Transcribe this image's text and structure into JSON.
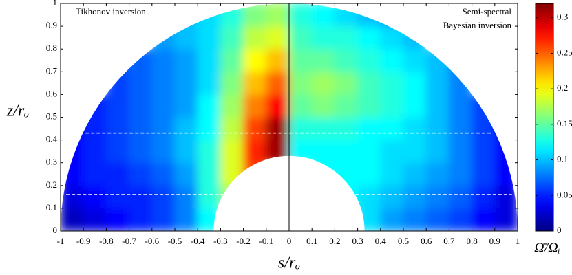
{
  "chart_data": {
    "type": "heatmap",
    "annotations": [
      "Tikhonov inversion",
      "Semi-spectral",
      "Bayesian inversion"
    ],
    "x_label": "s/rₒ",
    "y_label": "z/rₒ",
    "colorbar_label": "Ω̄/Ωᵢ",
    "colormap": "jet",
    "x": [
      -0.95,
      -0.85,
      -0.75,
      -0.65,
      -0.55,
      -0.45,
      -0.35,
      -0.25,
      -0.15,
      -0.05,
      0.05,
      0.15,
      0.25,
      0.35,
      0.45,
      0.55,
      0.65,
      0.75,
      0.85,
      0.95
    ],
    "y": [
      0.05,
      0.15,
      0.25,
      0.35,
      0.45,
      0.55,
      0.65,
      0.75,
      0.85,
      0.95
    ],
    "values": [
      [
        0.02,
        0.03,
        0.04,
        0.05,
        0.06,
        0.08,
        0.12,
        null,
        null,
        null,
        null,
        null,
        null,
        0.11,
        0.09,
        0.08,
        0.07,
        0.06,
        0.04,
        0.03
      ],
      [
        0.03,
        0.04,
        0.05,
        0.05,
        0.06,
        0.08,
        0.13,
        0.17,
        null,
        null,
        null,
        null,
        0.12,
        0.11,
        0.1,
        0.09,
        0.08,
        0.07,
        0.05,
        0.03
      ],
      [
        0.04,
        0.05,
        0.05,
        0.06,
        0.07,
        0.09,
        0.13,
        0.19,
        0.26,
        null,
        null,
        0.12,
        0.12,
        0.12,
        0.11,
        0.1,
        0.09,
        0.08,
        0.06,
        0.04
      ],
      [
        0.04,
        0.05,
        0.06,
        0.07,
        0.08,
        0.1,
        0.13,
        0.19,
        0.27,
        0.31,
        0.12,
        0.12,
        0.12,
        0.12,
        0.11,
        0.11,
        0.1,
        0.08,
        0.06,
        0.04
      ],
      [
        0.04,
        0.05,
        0.06,
        0.07,
        0.08,
        0.1,
        0.12,
        0.18,
        0.26,
        0.31,
        0.13,
        0.13,
        0.13,
        0.12,
        0.12,
        0.11,
        0.1,
        0.08,
        0.06,
        0.04
      ],
      [
        null,
        0.05,
        0.06,
        0.07,
        0.08,
        0.09,
        0.12,
        0.17,
        0.24,
        0.28,
        0.15,
        0.16,
        0.15,
        0.14,
        0.13,
        0.12,
        0.1,
        0.08,
        0.06,
        null
      ],
      [
        null,
        null,
        0.06,
        0.07,
        0.08,
        0.09,
        0.11,
        0.16,
        0.22,
        0.25,
        0.16,
        0.17,
        0.16,
        0.14,
        0.13,
        0.12,
        0.1,
        0.08,
        null,
        null
      ],
      [
        null,
        null,
        0.07,
        0.07,
        0.08,
        0.09,
        0.11,
        0.15,
        0.2,
        0.22,
        0.15,
        0.15,
        0.14,
        0.13,
        0.12,
        0.11,
        0.1,
        0.08,
        null,
        null
      ],
      [
        null,
        null,
        null,
        null,
        0.09,
        0.1,
        0.11,
        0.14,
        0.18,
        0.19,
        0.14,
        0.13,
        0.13,
        0.12,
        0.11,
        0.1,
        null,
        null,
        null,
        null
      ],
      [
        null,
        null,
        null,
        null,
        null,
        0.1,
        0.11,
        0.13,
        0.16,
        0.17,
        0.13,
        0.12,
        0.11,
        0.1,
        0.09,
        null,
        null,
        null,
        null,
        null
      ]
    ],
    "cell_width": 0.1,
    "cell_height": 0.1,
    "outer_radius": 1,
    "inner_radius": 0.33,
    "hlines": [
      0.43,
      0.16
    ],
    "xlim": [
      -1,
      1
    ],
    "ylim": [
      0,
      1
    ],
    "xticks": [
      -1,
      -0.9,
      -0.8,
      -0.7,
      -0.6,
      -0.5,
      -0.4,
      -0.3,
      -0.2,
      -0.1,
      0,
      0.1,
      0.2,
      0.3,
      0.4,
      0.5,
      0.6,
      0.7,
      0.8,
      0.9,
      1
    ],
    "yticks": [
      0,
      0.1,
      0.2,
      0.3,
      0.4,
      0.5,
      0.6,
      0.7,
      0.8,
      0.9,
      1
    ],
    "clim": [
      0,
      0.32
    ],
    "cticks": [
      0,
      0.05,
      0.1,
      0.15,
      0.2,
      0.25,
      0.3
    ]
  }
}
